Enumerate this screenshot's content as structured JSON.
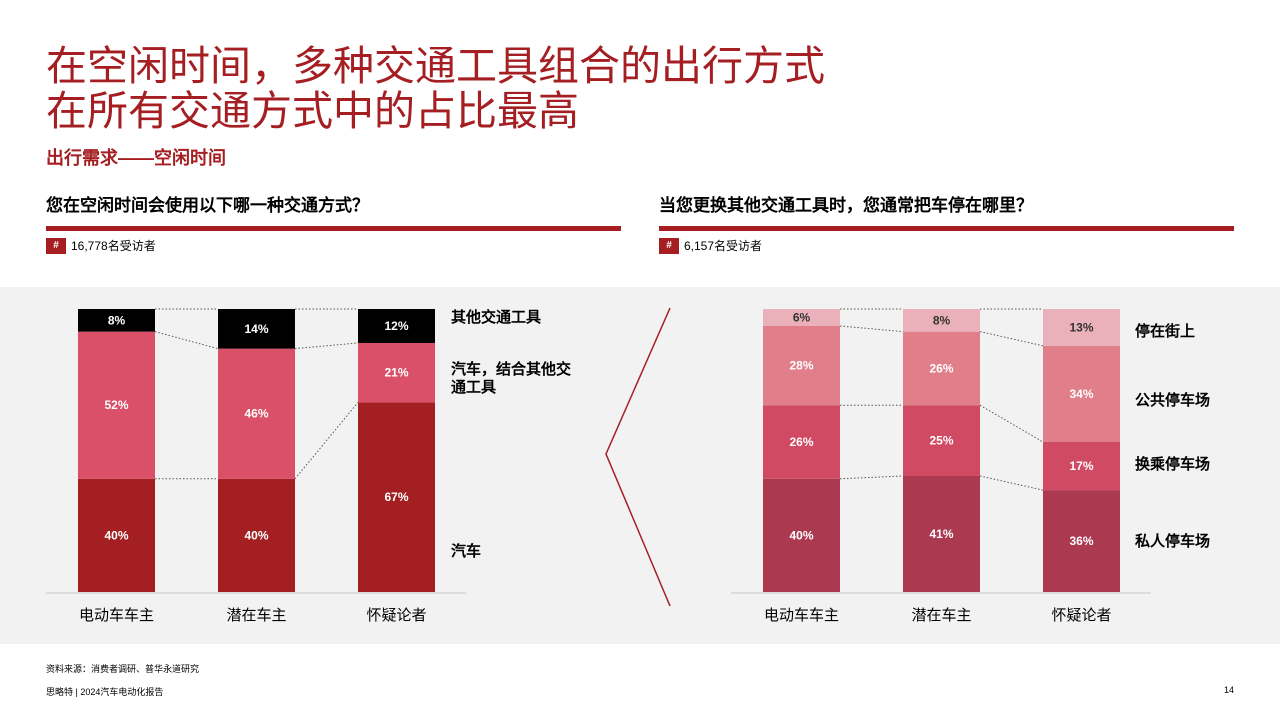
{
  "header": {
    "title_line1": "在空闲时间，多种交通工具组合的出行方式",
    "title_line2": "在所有交通方式中的占比最高",
    "subtitle": "出行需求——空闲时间"
  },
  "left": {
    "question": "您在空闲时间会使用以下哪一种交通方式？",
    "hash": "#",
    "respondents": "16,778名受访者"
  },
  "right": {
    "question": "当您更换其他交通工具时，您通常把车停在哪里？",
    "hash": "#",
    "respondents": "6,157名受访者"
  },
  "chart_data": [
    {
      "type": "bar",
      "stacked": true,
      "unit": "%",
      "categories": [
        "电动车车主",
        "潜在车主",
        "怀疑论者"
      ],
      "series": [
        {
          "name": "汽车",
          "values": [
            40,
            40,
            67
          ],
          "color": "#a31f21",
          "label": "汽车"
        },
        {
          "name": "汽车，结合其他交通工具",
          "values": [
            52,
            46,
            21
          ],
          "color": "#d95068",
          "label_lines": [
            "汽车，结合其他交",
            "通工具"
          ]
        },
        {
          "name": "其他交通工具",
          "values": [
            8,
            14,
            12
          ],
          "color": "#000000",
          "label": "其他交通工具"
        }
      ]
    },
    {
      "type": "bar",
      "stacked": true,
      "unit": "%",
      "categories": [
        "电动车车主",
        "潜在车主",
        "怀疑论者"
      ],
      "series": [
        {
          "name": "私人停车场",
          "values": [
            40,
            41,
            36
          ],
          "color": "#ab3a51",
          "label": "私人停车场"
        },
        {
          "name": "换乘停车场",
          "values": [
            26,
            25,
            17
          ],
          "color": "#cf4a62",
          "label": "换乘停车场"
        },
        {
          "name": "公共停车场",
          "values": [
            28,
            26,
            34
          ],
          "color": "#e07f8a",
          "label": "公共停车场"
        },
        {
          "name": "停在街上",
          "values": [
            6,
            8,
            13
          ],
          "color": "#ebb1ba",
          "label": "停在街上"
        }
      ]
    }
  ],
  "footer": {
    "source": "资料来源：消费者调研、普华永道研究",
    "report": "思略特 | 2024汽车电动化报告",
    "page": "14"
  }
}
